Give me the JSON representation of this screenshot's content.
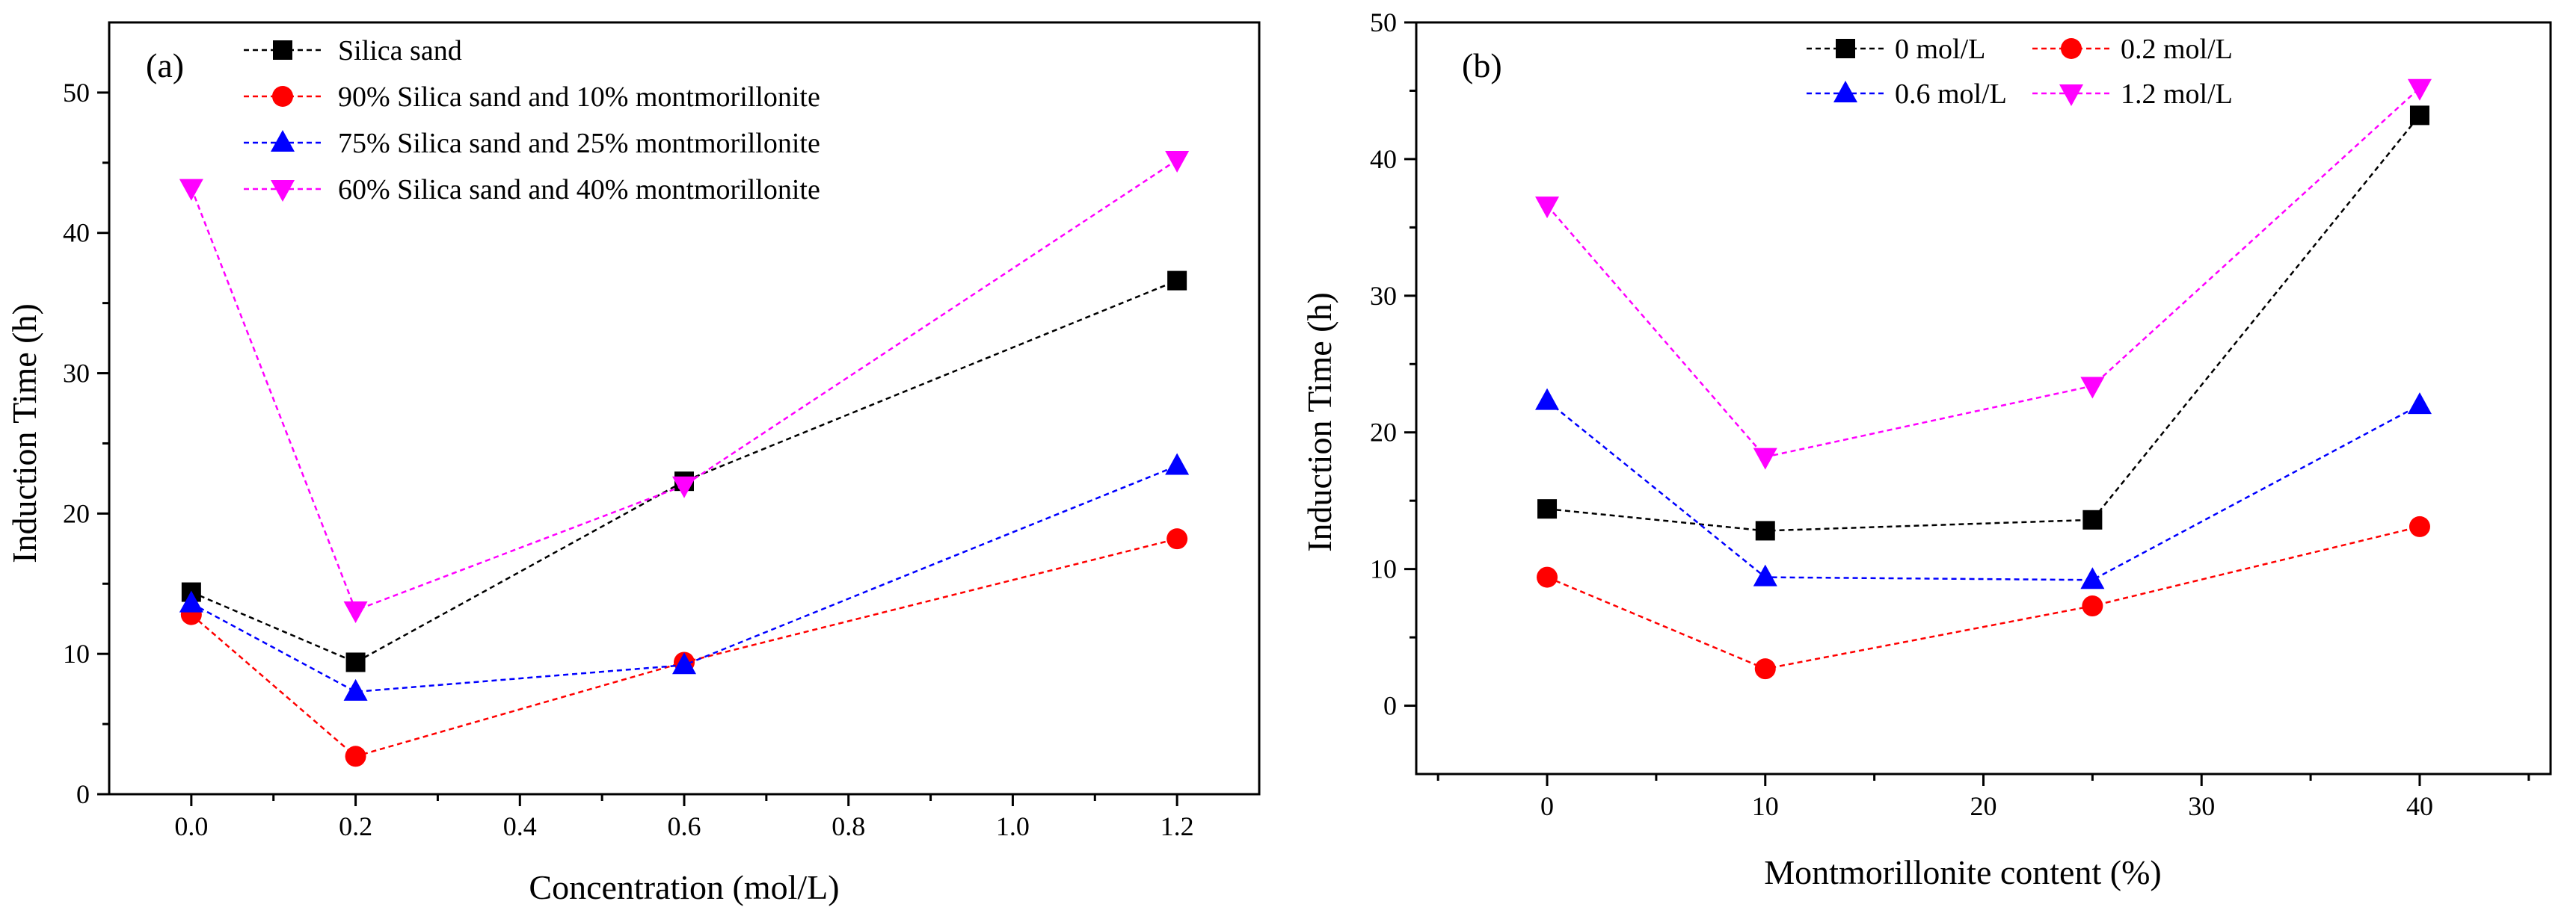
{
  "chart_data": [
    {
      "type": "line",
      "panel_label": "(a)",
      "title": "",
      "xlabel": "Concentration (mol/L)",
      "ylabel": "Induction Time (h)",
      "xlim": [
        -0.1,
        1.3
      ],
      "ylim": [
        0,
        55
      ],
      "xticks": [
        "0.0",
        "0.2",
        "0.4",
        "0.6",
        "0.8",
        "1.0",
        "1.2"
      ],
      "yticks": [
        "0",
        "10",
        "20",
        "30",
        "40",
        "50"
      ],
      "x": [
        0.0,
        0.2,
        0.6,
        1.2
      ],
      "legend_position": "top",
      "series": [
        {
          "name": "Silica sand",
          "color": "#000000",
          "marker": "square",
          "values": [
            14.4,
            9.4,
            22.3,
            36.6
          ]
        },
        {
          "name": "90% Silica sand and 10% montmorillonite",
          "color": "#ff0000",
          "marker": "circle",
          "values": [
            12.8,
            2.7,
            9.4,
            18.2
          ]
        },
        {
          "name": "75% Silica sand and 25% montmorillonite",
          "color": "#0000ff",
          "marker": "triangle-up",
          "values": [
            13.6,
            7.3,
            9.2,
            23.4
          ]
        },
        {
          "name": "60% Silica sand and 40% montmorillonite",
          "color": "#ff00ff",
          "marker": "triangle-down",
          "values": [
            43.2,
            13.1,
            22.0,
            45.2
          ]
        }
      ]
    },
    {
      "type": "line",
      "panel_label": "(b)",
      "title": "",
      "xlabel": "Montmorillonite content (%)",
      "ylabel": "Induction Time (h)",
      "xlim": [
        -6,
        46
      ],
      "ylim": [
        -5,
        50
      ],
      "xticks": [
        "0",
        "10",
        "20",
        "30",
        "40"
      ],
      "yticks": [
        "0",
        "10",
        "20",
        "30",
        "40",
        "50"
      ],
      "x": [
        0,
        10,
        25,
        40
      ],
      "legend_position": "top",
      "series": [
        {
          "name": "0 mol/L",
          "color": "#000000",
          "marker": "square",
          "values": [
            14.4,
            12.8,
            13.6,
            43.2
          ]
        },
        {
          "name": "0.2 mol/L",
          "color": "#ff0000",
          "marker": "circle",
          "values": [
            9.4,
            2.7,
            7.3,
            13.1
          ]
        },
        {
          "name": "0.6 mol/L",
          "color": "#0000ff",
          "marker": "triangle-up",
          "values": [
            22.3,
            9.4,
            9.2,
            22.0
          ]
        },
        {
          "name": "1.2 mol/L",
          "color": "#ff00ff",
          "marker": "triangle-down",
          "values": [
            36.6,
            18.2,
            23.4,
            45.2
          ]
        }
      ]
    }
  ]
}
